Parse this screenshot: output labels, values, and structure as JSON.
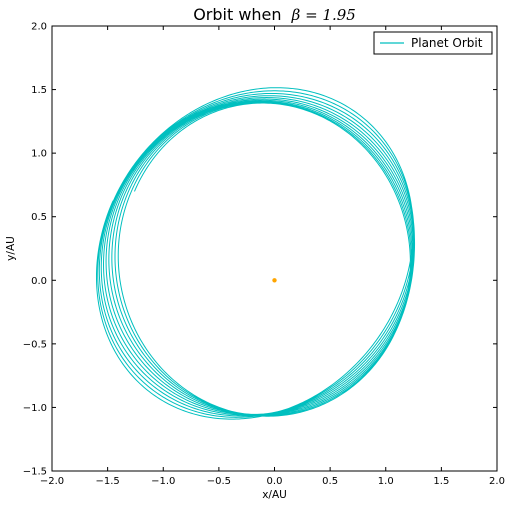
{
  "chart_data": {
    "type": "line",
    "title": "Orbit when",
    "title_math": "β = 1.95",
    "xlabel": "x/AU",
    "ylabel": "y/AU",
    "xlim": [
      -2.0,
      2.0
    ],
    "ylim": [
      -1.5,
      2.0
    ],
    "xticks": [
      "−2.0",
      "−1.5",
      "−1.0",
      "−0.5",
      "0.0",
      "0.5",
      "1.0",
      "1.5",
      "2.0"
    ],
    "yticks": [
      "−1.5",
      "−1.0",
      "−0.5",
      "0.0",
      "0.5",
      "1.0",
      "1.5",
      "2.0"
    ],
    "grid": false,
    "legend": {
      "placement": "top-right",
      "entries": [
        "Planet Orbit"
      ]
    },
    "series": [
      {
        "name": "Planet Orbit",
        "color": "#00bfbf",
        "kind": "precessing-ellipse",
        "start": [
          -0.78,
          0.97
        ],
        "end": [
          1.0,
          0.0
        ],
        "approx_x_range": [
          -1.52,
          1.43
        ],
        "approx_y_range": [
          -1.2,
          1.5
        ],
        "loops": 10
      }
    ],
    "points": [
      {
        "name": "Sun",
        "x": 0.0,
        "y": 0.0,
        "color": "#ffa500"
      }
    ]
  }
}
